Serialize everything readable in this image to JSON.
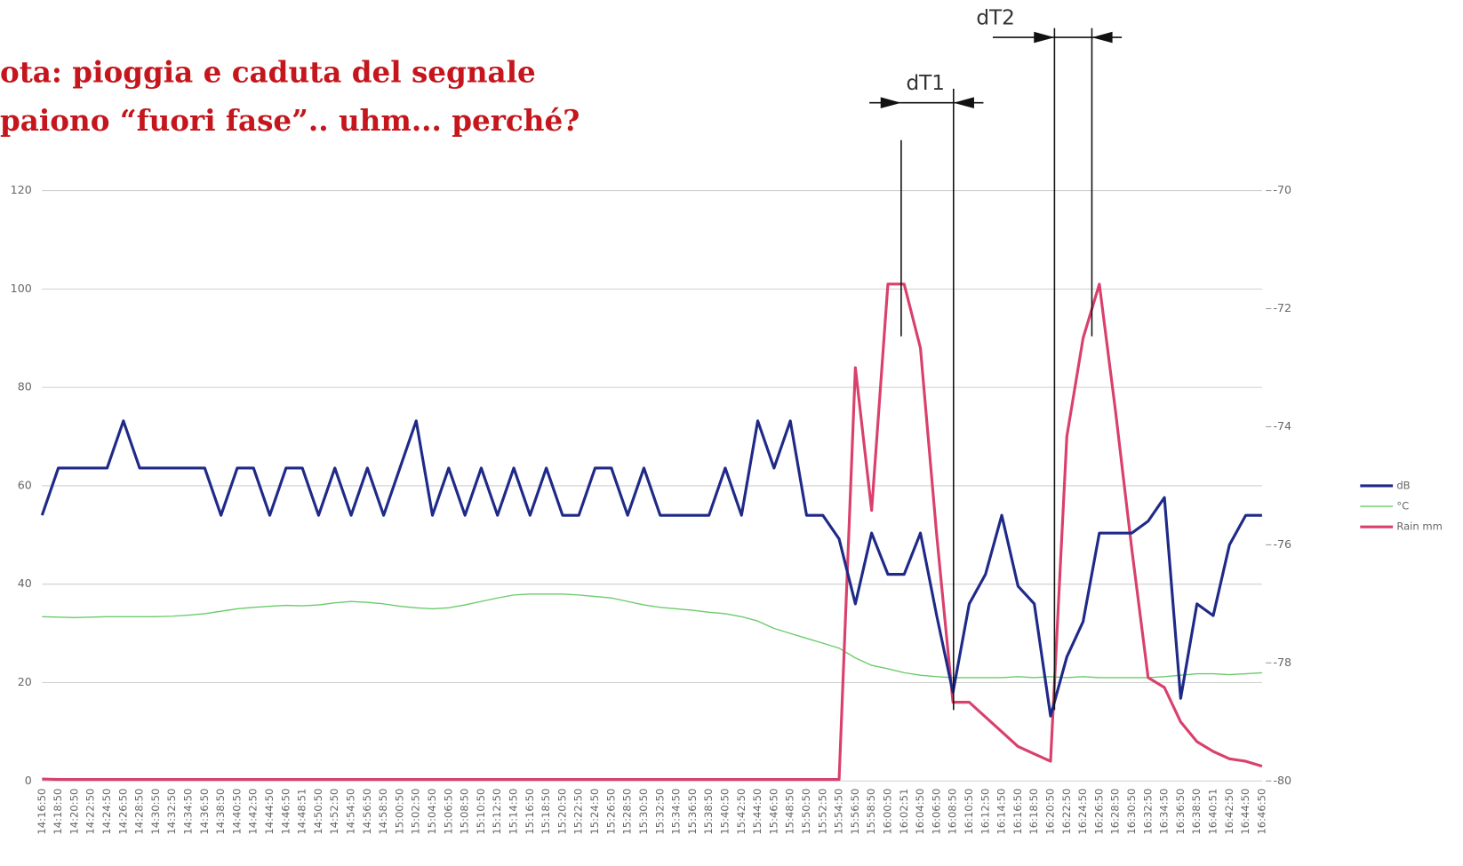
{
  "chart_data": {
    "type": "line",
    "title": [
      "ota: pioggia e caduta del segnale",
      "paiono “fuori fase”.. uhm... perché?"
    ],
    "annotations": [
      "dT1",
      "dT2"
    ],
    "categories": [
      "14:16:50",
      "14:18:50",
      "14:20:50",
      "14:22:50",
      "14:24:50",
      "14:26:50",
      "14:28:50",
      "14:30:50",
      "14:32:50",
      "14:34:50",
      "14:36:50",
      "14:38:50",
      "14:40:50",
      "14:42:50",
      "14:44:50",
      "14:46:50",
      "14:48:51",
      "14:50:50",
      "14:52:50",
      "14:54:50",
      "14:56:50",
      "14:58:50",
      "15:00:50",
      "15:02:50",
      "15:04:50",
      "15:06:50",
      "15:08:50",
      "15:10:50",
      "15:12:50",
      "15:14:50",
      "15:16:50",
      "15:18:50",
      "15:20:50",
      "15:22:50",
      "15:24:50",
      "15:26:50",
      "15:28:50",
      "15:30:50",
      "15:32:50",
      "15:34:50",
      "15:36:50",
      "15:38:50",
      "15:40:50",
      "15:42:50",
      "15:44:50",
      "15:46:50",
      "15:48:50",
      "15:50:50",
      "15:52:50",
      "15:54:50",
      "15:56:50",
      "15:58:50",
      "16:00:50",
      "16:02:51",
      "16:04:50",
      "16:06:50",
      "16:08:50",
      "16:10:50",
      "16:12:50",
      "16:14:50",
      "16:16:50",
      "16:18:50",
      "16:20:50",
      "16:22:50",
      "16:24:50",
      "16:26:50",
      "16:28:50",
      "16:30:50",
      "16:32:50",
      "16:34:50",
      "16:36:50",
      "16:38:50",
      "16:40:51",
      "16:42:50",
      "16:44:50",
      "16:46:50"
    ],
    "series": [
      {
        "name": "dB",
        "color": "#1f2a88",
        "axis": "y2",
        "values": [
          -75.5,
          -74.7,
          -74.7,
          -74.7,
          -74.7,
          -73.9,
          -74.7,
          -74.7,
          -74.7,
          -74.7,
          -74.7,
          -75.5,
          -74.7,
          -74.7,
          -75.5,
          -74.7,
          -74.7,
          -75.5,
          -74.7,
          -75.5,
          -74.7,
          -75.5,
          -74.7,
          -73.9,
          -75.5,
          -74.7,
          -75.5,
          -74.7,
          -75.5,
          -74.7,
          -75.5,
          -74.7,
          -75.5,
          -75.5,
          -74.7,
          -74.7,
          -75.5,
          -74.7,
          -75.5,
          -75.5,
          -75.5,
          -75.5,
          -74.7,
          -75.5,
          -73.9,
          -74.7,
          -73.9,
          -75.5,
          -75.5,
          -75.9,
          -77.0,
          -75.8,
          -76.5,
          -76.5,
          -75.8,
          -77.2,
          -78.5,
          -77.0,
          -76.5,
          -75.5,
          -76.7,
          -77.0,
          -78.9,
          -77.9,
          -77.3,
          -75.8,
          -75.8,
          -75.8,
          -75.6,
          -75.2,
          -78.6,
          -77.0,
          -77.2,
          -76.0,
          -75.5,
          -75.5
        ]
      },
      {
        "name": "°C",
        "color": "#6acb6a",
        "values": [
          33.4,
          33.3,
          33.2,
          33.3,
          33.4,
          33.4,
          33.4,
          33.4,
          33.5,
          33.7,
          34.0,
          34.5,
          35.0,
          35.3,
          35.5,
          35.7,
          35.6,
          35.8,
          36.2,
          36.5,
          36.3,
          36.0,
          35.5,
          35.2,
          35.0,
          35.2,
          35.8,
          36.5,
          37.2,
          37.8,
          38.0,
          38.0,
          38.0,
          37.8,
          37.5,
          37.2,
          36.5,
          35.8,
          35.3,
          35.0,
          34.7,
          34.3,
          34.0,
          33.4,
          32.5,
          31.0,
          30.0,
          29.0,
          28.0,
          27.0,
          25.0,
          23.5,
          22.8,
          22.0,
          21.5,
          21.2,
          21.0,
          21.0,
          21.0,
          21.0,
          21.2,
          21.0,
          21.2,
          21.0,
          21.2,
          21.0,
          21.0,
          21.0,
          21.0,
          21.2,
          21.5,
          21.8,
          21.8,
          21.6,
          21.8,
          22.0
        ]
      },
      {
        "name": "Rain mm",
        "color": "#d9406c",
        "values": [
          0.4,
          0.3,
          0.3,
          0.3,
          0.3,
          0.3,
          0.3,
          0.3,
          0.3,
          0.3,
          0.3,
          0.3,
          0.3,
          0.3,
          0.3,
          0.3,
          0.3,
          0.3,
          0.3,
          0.3,
          0.3,
          0.3,
          0.3,
          0.3,
          0.3,
          0.3,
          0.3,
          0.3,
          0.3,
          0.3,
          0.3,
          0.3,
          0.3,
          0.3,
          0.3,
          0.3,
          0.3,
          0.3,
          0.3,
          0.3,
          0.3,
          0.3,
          0.3,
          0.3,
          0.3,
          0.3,
          0.3,
          0.3,
          0.3,
          0.3,
          84,
          55,
          101,
          101,
          88,
          50,
          16,
          16,
          13,
          10,
          7,
          5.5,
          4,
          70,
          90,
          101,
          75,
          47,
          21,
          19,
          12,
          8,
          6,
          4.5,
          4,
          3
        ]
      }
    ],
    "ylim": [
      0,
      120
    ],
    "yticks": [
      0,
      20,
      40,
      60,
      80,
      100,
      120
    ],
    "y2lim": [
      -80,
      -70
    ],
    "y2ticks": [
      -80,
      -78,
      -76,
      -74,
      -72,
      -70
    ],
    "grid": true,
    "legend": "right"
  }
}
